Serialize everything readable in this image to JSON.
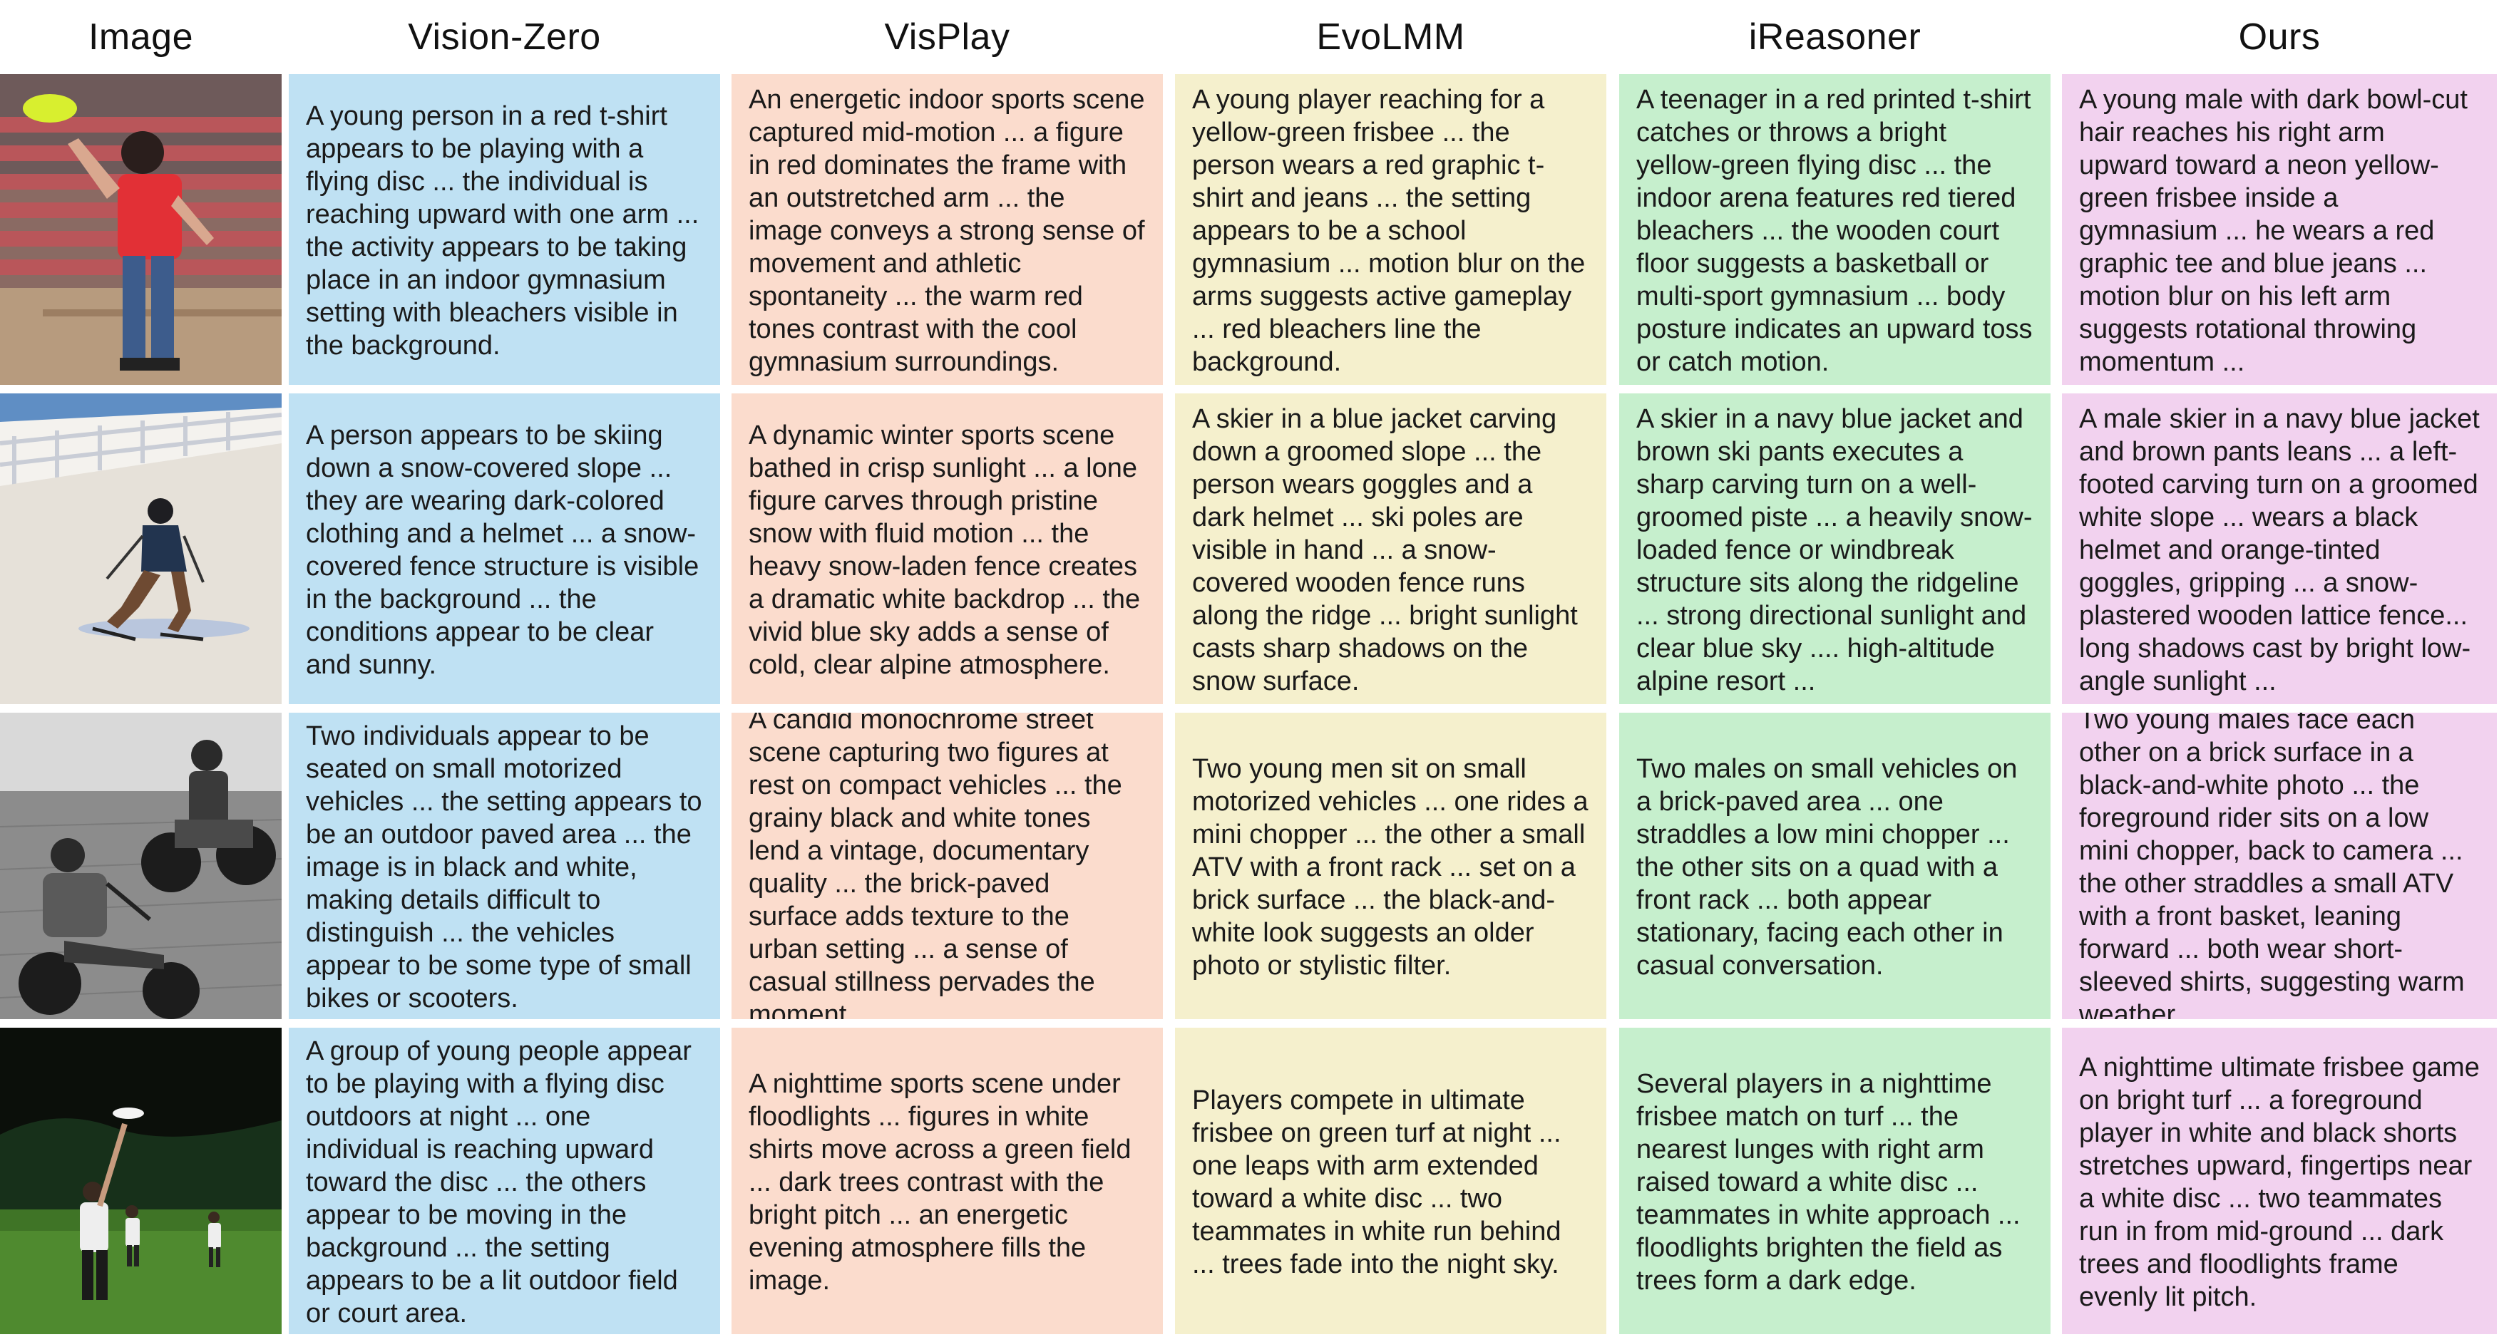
{
  "colors": {
    "Vision-Zero": "#bfe1f3",
    "VisPlay": "#fbdccd",
    "EvoLMM": "#f5f0cd",
    "iReasoner": "#c6efcd",
    "Ours": "#f2d2ef"
  },
  "headers": [
    "Image",
    "Vision-Zero",
    "VisPlay",
    "EvoLMM",
    "iReasoner",
    "Ours"
  ],
  "rows": [
    {
      "image": {
        "icon": "frisbee-gym-photo"
      },
      "captions": [
        "A young person in a red t-shirt appears to be playing with a flying disc ... the individual is reaching upward with one arm ... the activity appears to be taking place in an indoor gymnasium setting with bleachers visible in the background.",
        "An energetic indoor sports scene captured mid-motion ... a figure in red dominates the frame with an outstretched arm ... the image conveys a strong sense of movement and athletic spontaneity ... the warm red tones contrast with the cool gymnasium surroundings.",
        "A young player reaching for a yellow-green frisbee ... the person wears a red graphic t-shirt and jeans ... the setting appears to be a school gymnasium ... motion blur on the arms suggests active gameplay ... red bleachers line the background.",
        "A teenager in a red printed t-shirt catches or throws a bright yellow-green flying disc ... the indoor arena features red tiered bleachers ... the wooden court floor suggests a basketball or multi-sport gymnasium ... body posture indicates an upward toss or catch motion.",
        "A young male with dark bowl-cut hair reaches his right arm upward toward a neon yellow-green frisbee inside a gymnasium ... he wears a red graphic tee and blue jeans ... motion blur on his left arm suggests rotational throwing momentum ..."
      ]
    },
    {
      "image": {
        "icon": "skier-photo"
      },
      "captions": [
        "A person appears to be skiing down a snow-covered slope ... they are wearing dark-colored clothing and a helmet ... a snow-covered fence structure is visible in the background ... the conditions appear to be clear and sunny.",
        "A dynamic winter sports scene bathed in crisp sunlight ... a lone figure carves through pristine snow with fluid motion ... the heavy snow-laden fence creates a dramatic white backdrop ... the vivid blue sky adds a sense of cold, clear alpine atmosphere.",
        "A skier in a blue jacket carving down a groomed slope ... the person wears goggles and a dark helmet ... ski poles are visible in hand ... a snow-covered wooden fence runs along the ridge ... bright sunlight casts sharp shadows on the snow surface.",
        "A skier in a navy blue jacket and brown ski pants executes a sharp carving turn on a well-groomed piste ... a heavily snow-loaded fence or windbreak structure sits along the ridgeline ... strong directional sunlight and clear blue sky .... high-altitude alpine resort ...",
        "A male skier in a navy blue jacket and brown pants leans ... a left-footed carving turn on a groomed white slope ... wears a black helmet and orange-tinted goggles, gripping ... a snow-plastered wooden lattice fence... long shadows cast by bright low-angle sunlight ..."
      ]
    },
    {
      "image": {
        "icon": "motorbikes-bw-photo"
      },
      "captions": [
        "Two individuals appear to be seated on small motorized vehicles ... the setting appears to be an outdoor paved area ... the image is in black and white, making details difficult to distinguish ... the vehicles appear to be some type of small bikes or scooters.",
        "A candid monochrome street scene capturing two figures at rest on compact vehicles ... the grainy black and white tones lend a vintage, documentary quality ... the brick-paved surface adds texture to the urban setting ... a sense of casual stillness pervades the moment.",
        "Two young men sit on small motorized vehicles ... one rides a mini chopper ... the other a small ATV with a front rack ... set on a brick surface ... the black-and-white look suggests an older photo or stylistic filter.",
        "Two males on small vehicles on a brick-paved area ... one straddles a low mini chopper ... the other sits on a quad with a front rack ... both appear stationary, facing each other in casual conversation.",
        "Two young males face each other on a brick surface in a black-and-white photo ... the foreground rider sits on a low mini chopper, back to camera ... the other straddles a small ATV with a front basket, leaning forward ... both wear short-sleeved shirts, suggesting warm weather."
      ]
    },
    {
      "image": {
        "icon": "night-frisbee-photo"
      },
      "captions": [
        "A group of young people appear to be playing with a flying disc outdoors at night ... one individual is reaching upward toward the disc ... the others appear to be moving in the background ... the setting appears to be a lit outdoor field or court area.",
        "A nighttime sports scene under floodlights ... figures in white shirts move across a green field ... dark trees contrast with the bright pitch ... an energetic evening atmosphere fills the image.",
        "Players compete in ultimate frisbee on green turf at night ... one leaps with arm extended toward a white disc ... two teammates in white run behind ... trees fade into the night sky.",
        "Several players in a nighttime frisbee match on turf ... the nearest lunges with right arm raised toward a white disc ... teammates in white approach ... floodlights brighten the field as trees form a dark edge.",
        "A nighttime ultimate frisbee game on bright turf ... a foreground player in white and black shorts stretches upward, fingertips near a white disc ... two teammates run in from mid-ground ... dark trees and floodlights frame evenly lit pitch."
      ]
    }
  ]
}
